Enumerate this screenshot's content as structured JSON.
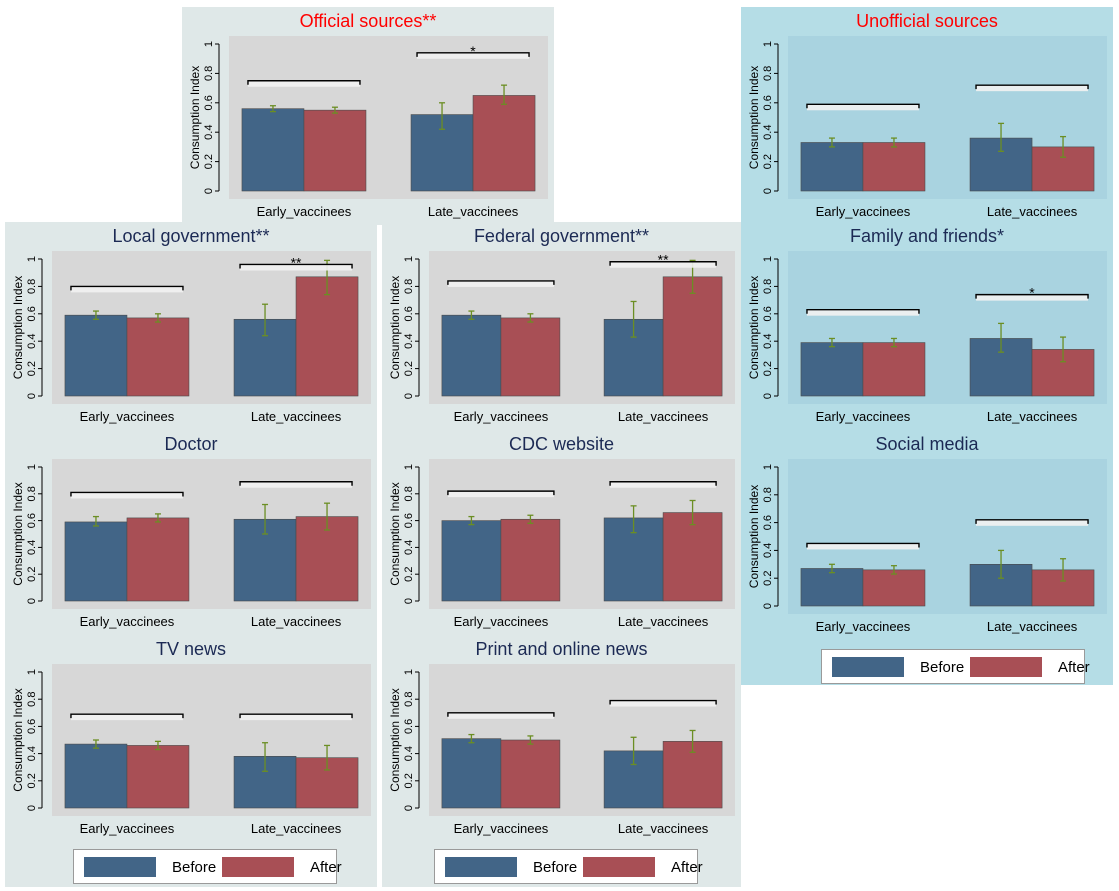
{
  "colors": {
    "official_bg": "#dfe8e8",
    "unofficial_bg": "#b5dde6",
    "plot_official": "#d7d7d7",
    "plot_unofficial": "#a9d3e0",
    "before": "#426587",
    "after": "#a84f55",
    "title_red": "#ff0000",
    "title_navy": "#1c2a54",
    "ci": "#6b8e23",
    "sig_bracket": "#000000"
  },
  "common": {
    "ylabel": "Consumption Index",
    "yticks": [
      "0",
      "0.2",
      "0.4",
      "0.6",
      "0.8",
      "1"
    ],
    "categories": [
      "Early_vaccinees",
      "Late_vaccinees"
    ],
    "series_names": [
      "Before",
      "After"
    ]
  },
  "legends": [
    {
      "id": "legend-left",
      "before": "Before",
      "after": "After"
    },
    {
      "id": "legend-middle",
      "before": "Before",
      "after": "After"
    },
    {
      "id": "legend-right",
      "before": "Before",
      "after": "After"
    }
  ],
  "chart_data": [
    {
      "id": "official",
      "type": "bar",
      "title": "Official sources**",
      "title_color": "red",
      "bg": "official",
      "ylim": [
        0,
        1
      ],
      "categories": [
        "Early_vaccinees",
        "Late_vaccinees"
      ],
      "series": [
        {
          "name": "Before",
          "values": [
            0.56,
            0.52
          ],
          "ci": [
            [
              0.54,
              0.58
            ],
            [
              0.42,
              0.6
            ]
          ]
        },
        {
          "name": "After",
          "values": [
            0.55,
            0.65
          ],
          "ci": [
            [
              0.53,
              0.57
            ],
            [
              0.59,
              0.72
            ]
          ]
        }
      ],
      "brackets": [
        {
          "group": 0,
          "y": 0.75,
          "label": ""
        },
        {
          "group": 1,
          "y": 0.94,
          "label": "*"
        }
      ]
    },
    {
      "id": "unofficial",
      "type": "bar",
      "title": "Unofficial sources",
      "title_color": "red",
      "bg": "unofficial",
      "ylim": [
        0,
        1
      ],
      "categories": [
        "Early_vaccinees",
        "Late_vaccinees"
      ],
      "series": [
        {
          "name": "Before",
          "values": [
            0.33,
            0.36
          ],
          "ci": [
            [
              0.3,
              0.36
            ],
            [
              0.27,
              0.46
            ]
          ]
        },
        {
          "name": "After",
          "values": [
            0.33,
            0.3
          ],
          "ci": [
            [
              0.3,
              0.36
            ],
            [
              0.23,
              0.37
            ]
          ]
        }
      ],
      "brackets": [
        {
          "group": 0,
          "y": 0.59,
          "label": ""
        },
        {
          "group": 1,
          "y": 0.72,
          "label": ""
        }
      ]
    },
    {
      "id": "local",
      "type": "bar",
      "title": "Local government**",
      "title_color": "navy",
      "bg": "official",
      "ylim": [
        0,
        1
      ],
      "categories": [
        "Early_vaccinees",
        "Late_vaccinees"
      ],
      "series": [
        {
          "name": "Before",
          "values": [
            0.59,
            0.56
          ],
          "ci": [
            [
              0.56,
              0.62
            ],
            [
              0.44,
              0.67
            ]
          ]
        },
        {
          "name": "After",
          "values": [
            0.57,
            0.87
          ],
          "ci": [
            [
              0.54,
              0.6
            ],
            [
              0.74,
              0.99
            ]
          ]
        }
      ],
      "brackets": [
        {
          "group": 0,
          "y": 0.8,
          "label": ""
        },
        {
          "group": 1,
          "y": 0.96,
          "label": "**"
        }
      ]
    },
    {
      "id": "federal",
      "type": "bar",
      "title": "Federal government**",
      "title_color": "navy",
      "bg": "official",
      "ylim": [
        0,
        1
      ],
      "categories": [
        "Early_vaccinees",
        "Late_vaccinees"
      ],
      "series": [
        {
          "name": "Before",
          "values": [
            0.59,
            0.56
          ],
          "ci": [
            [
              0.56,
              0.62
            ],
            [
              0.43,
              0.69
            ]
          ]
        },
        {
          "name": "After",
          "values": [
            0.57,
            0.87
          ],
          "ci": [
            [
              0.54,
              0.6
            ],
            [
              0.75,
              0.99
            ]
          ]
        }
      ],
      "brackets": [
        {
          "group": 0,
          "y": 0.84,
          "label": ""
        },
        {
          "group": 1,
          "y": 0.98,
          "label": "**"
        }
      ]
    },
    {
      "id": "family",
      "type": "bar",
      "title": "Family and friends*",
      "title_color": "navy",
      "bg": "unofficial",
      "ylim": [
        0,
        1
      ],
      "categories": [
        "Early_vaccinees",
        "Late_vaccinees"
      ],
      "series": [
        {
          "name": "Before",
          "values": [
            0.39,
            0.42
          ],
          "ci": [
            [
              0.36,
              0.42
            ],
            [
              0.32,
              0.53
            ]
          ]
        },
        {
          "name": "After",
          "values": [
            0.39,
            0.34
          ],
          "ci": [
            [
              0.36,
              0.42
            ],
            [
              0.25,
              0.43
            ]
          ]
        }
      ],
      "brackets": [
        {
          "group": 0,
          "y": 0.63,
          "label": ""
        },
        {
          "group": 1,
          "y": 0.74,
          "label": "*"
        }
      ]
    },
    {
      "id": "doctor",
      "type": "bar",
      "title": "Doctor",
      "title_color": "navy",
      "bg": "official",
      "ylim": [
        0,
        1
      ],
      "categories": [
        "Early_vaccinees",
        "Late_vaccinees"
      ],
      "series": [
        {
          "name": "Before",
          "values": [
            0.59,
            0.61
          ],
          "ci": [
            [
              0.56,
              0.63
            ],
            [
              0.5,
              0.72
            ]
          ]
        },
        {
          "name": "After",
          "values": [
            0.62,
            0.63
          ],
          "ci": [
            [
              0.59,
              0.65
            ],
            [
              0.53,
              0.73
            ]
          ]
        }
      ],
      "brackets": [
        {
          "group": 0,
          "y": 0.81,
          "label": ""
        },
        {
          "group": 1,
          "y": 0.89,
          "label": ""
        }
      ]
    },
    {
      "id": "cdc",
      "type": "bar",
      "title": "CDC website",
      "title_color": "navy",
      "bg": "official",
      "ylim": [
        0,
        1
      ],
      "categories": [
        "Early_vaccinees",
        "Late_vaccinees"
      ],
      "series": [
        {
          "name": "Before",
          "values": [
            0.6,
            0.62
          ],
          "ci": [
            [
              0.57,
              0.63
            ],
            [
              0.51,
              0.71
            ]
          ]
        },
        {
          "name": "After",
          "values": [
            0.61,
            0.66
          ],
          "ci": [
            [
              0.58,
              0.64
            ],
            [
              0.57,
              0.75
            ]
          ]
        }
      ],
      "brackets": [
        {
          "group": 0,
          "y": 0.82,
          "label": ""
        },
        {
          "group": 1,
          "y": 0.89,
          "label": ""
        }
      ]
    },
    {
      "id": "social",
      "type": "bar",
      "title": "Social media",
      "title_color": "navy",
      "bg": "unofficial",
      "ylim": [
        0,
        1
      ],
      "categories": [
        "Early_vaccinees",
        "Late_vaccinees"
      ],
      "series": [
        {
          "name": "Before",
          "values": [
            0.27,
            0.3
          ],
          "ci": [
            [
              0.24,
              0.3
            ],
            [
              0.2,
              0.4
            ]
          ]
        },
        {
          "name": "After",
          "values": [
            0.26,
            0.26
          ],
          "ci": [
            [
              0.23,
              0.29
            ],
            [
              0.18,
              0.34
            ]
          ]
        }
      ],
      "brackets": [
        {
          "group": 0,
          "y": 0.45,
          "label": ""
        },
        {
          "group": 1,
          "y": 0.62,
          "label": ""
        }
      ]
    },
    {
      "id": "tv",
      "type": "bar",
      "title": "TV news",
      "title_color": "navy",
      "bg": "official",
      "ylim": [
        0,
        1
      ],
      "categories": [
        "Early_vaccinees",
        "Late_vaccinees"
      ],
      "series": [
        {
          "name": "Before",
          "values": [
            0.47,
            0.38
          ],
          "ci": [
            [
              0.44,
              0.5
            ],
            [
              0.27,
              0.48
            ]
          ]
        },
        {
          "name": "After",
          "values": [
            0.46,
            0.37
          ],
          "ci": [
            [
              0.43,
              0.49
            ],
            [
              0.28,
              0.46
            ]
          ]
        }
      ],
      "brackets": [
        {
          "group": 0,
          "y": 0.69,
          "label": ""
        },
        {
          "group": 1,
          "y": 0.69,
          "label": ""
        }
      ]
    },
    {
      "id": "print",
      "type": "bar",
      "title": "Print and online news",
      "title_color": "navy",
      "bg": "official",
      "ylim": [
        0,
        1
      ],
      "categories": [
        "Early_vaccinees",
        "Late_vaccinees"
      ],
      "series": [
        {
          "name": "Before",
          "values": [
            0.51,
            0.42
          ],
          "ci": [
            [
              0.48,
              0.54
            ],
            [
              0.32,
              0.52
            ]
          ]
        },
        {
          "name": "After",
          "values": [
            0.5,
            0.49
          ],
          "ci": [
            [
              0.47,
              0.53
            ],
            [
              0.41,
              0.57
            ]
          ]
        }
      ],
      "brackets": [
        {
          "group": 0,
          "y": 0.7,
          "label": ""
        },
        {
          "group": 1,
          "y": 0.79,
          "label": ""
        }
      ]
    }
  ]
}
